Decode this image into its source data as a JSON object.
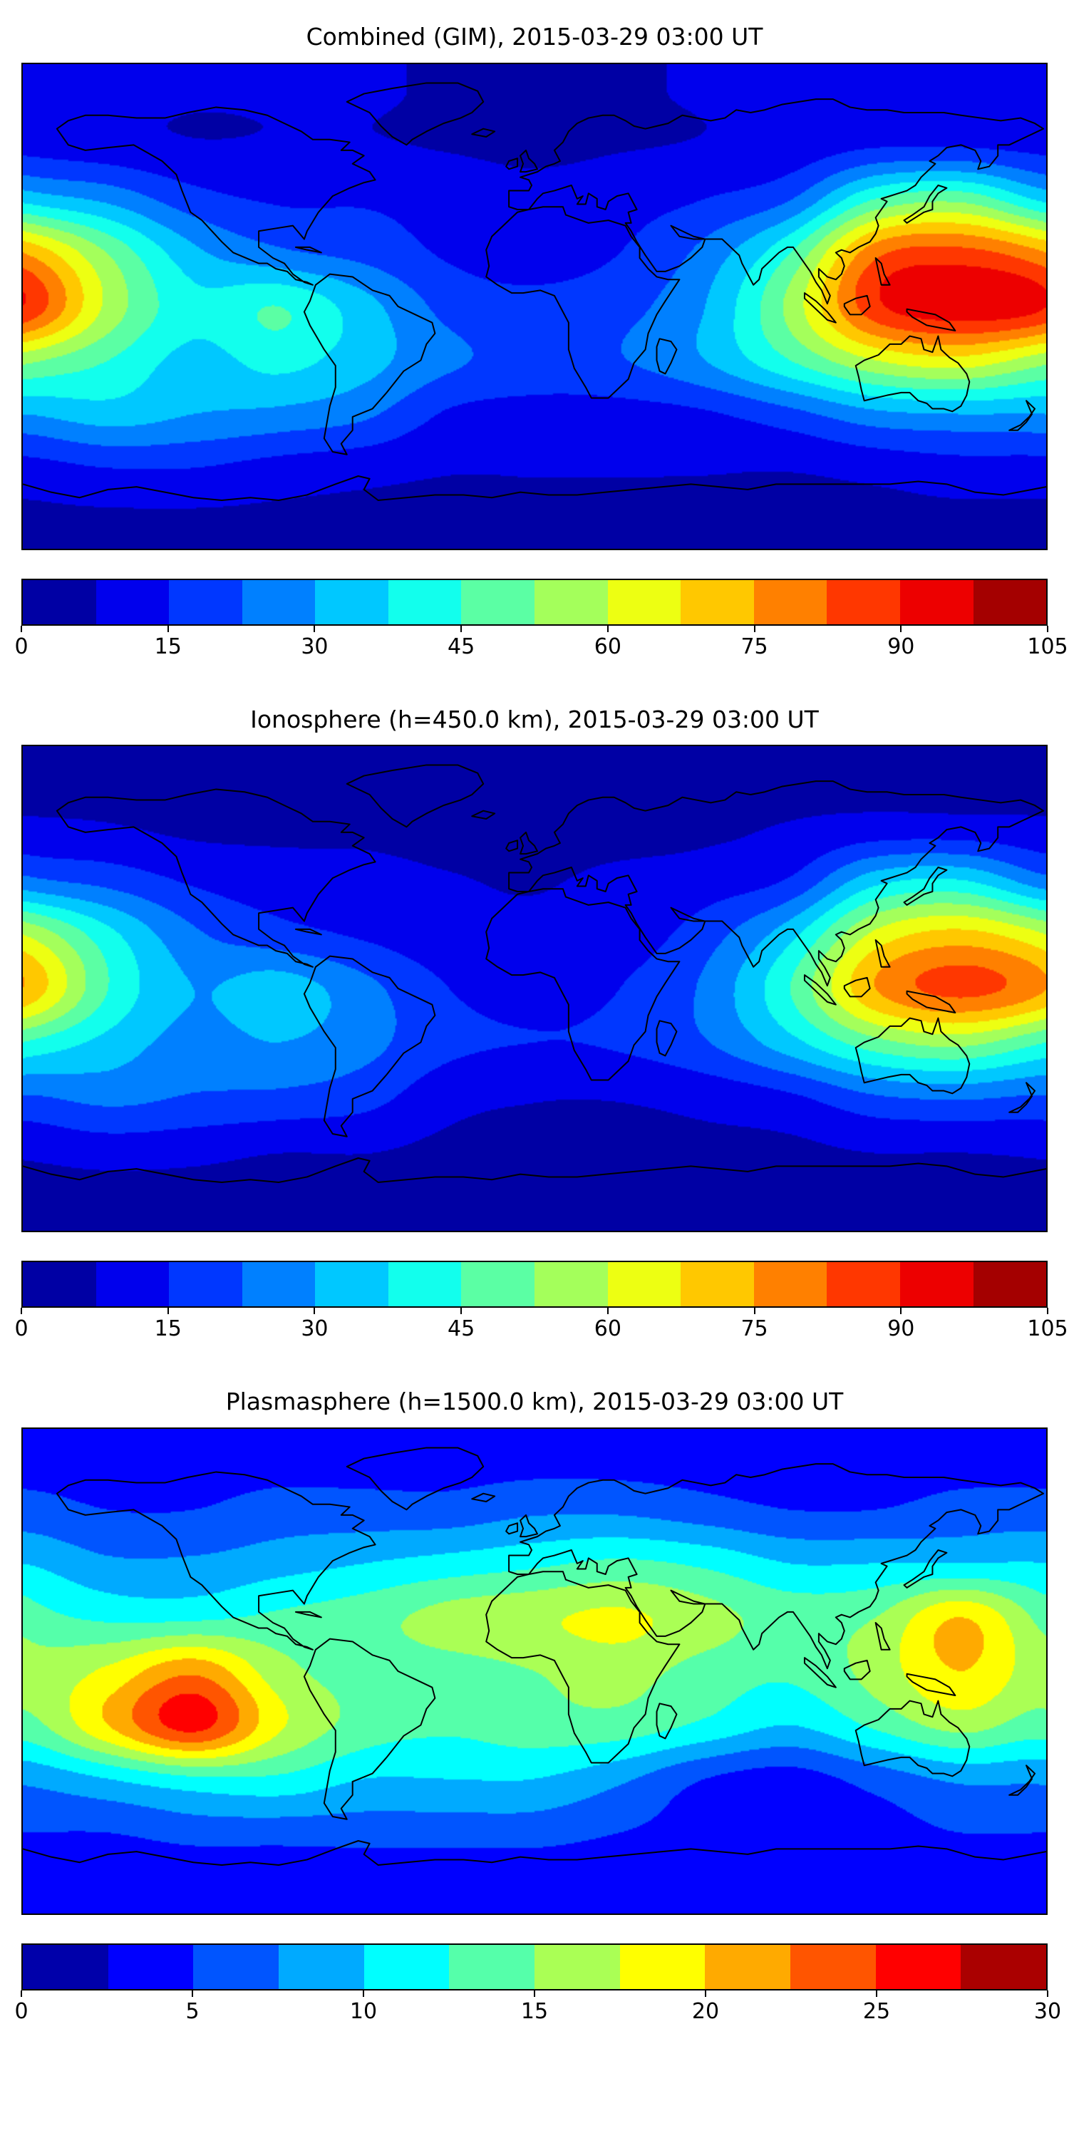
{
  "page": {
    "background": "#ffffff",
    "coastline_color": "#000000",
    "frame_color": "#000000"
  },
  "chart_data": [
    {
      "type": "heatmap",
      "title": "Combined (GIM), 2015-03-29 03:00 UT",
      "projection": "equirectangular",
      "lon_range": [
        -180,
        180
      ],
      "lat_range": [
        -90,
        90
      ],
      "colormap": "jet",
      "levels": {
        "min": 0,
        "max": 105,
        "step": 7.5
      },
      "colorbar_ticks": [
        0,
        15,
        30,
        45,
        60,
        75,
        90,
        105
      ],
      "grid": {
        "lon": [
          -180,
          -150,
          -120,
          -90,
          -60,
          -30,
          0,
          30,
          60,
          90,
          120,
          150
        ],
        "lat": [
          80,
          60,
          40,
          20,
          0,
          -20,
          -40,
          -60,
          -80
        ],
        "values": [
          [
            9,
            9,
            8,
            8,
            8,
            7,
            7,
            7,
            8,
            9,
            10,
            10
          ],
          [
            12,
            10,
            8,
            8,
            8,
            7,
            6,
            7,
            8,
            10,
            14,
            14
          ],
          [
            35,
            28,
            18,
            14,
            14,
            12,
            10,
            12,
            15,
            22,
            45,
            50
          ],
          [
            75,
            52,
            32,
            24,
            20,
            14,
            12,
            15,
            25,
            45,
            80,
            85
          ],
          [
            90,
            58,
            40,
            45,
            33,
            20,
            17,
            20,
            30,
            55,
            88,
            95
          ],
          [
            55,
            45,
            35,
            40,
            33,
            24,
            20,
            22,
            30,
            45,
            60,
            65
          ],
          [
            30,
            34,
            30,
            28,
            24,
            14,
            12,
            12,
            14,
            20,
            28,
            30
          ],
          [
            12,
            15,
            15,
            12,
            10,
            8,
            8,
            8,
            8,
            8,
            10,
            12
          ],
          [
            6,
            6,
            6,
            6,
            6,
            6,
            6,
            6,
            6,
            6,
            6,
            6
          ]
        ]
      }
    },
    {
      "type": "heatmap",
      "title": "Ionosphere  (h=450.0 km), 2015-03-29 03:00 UT",
      "projection": "equirectangular",
      "lon_range": [
        -180,
        180
      ],
      "lat_range": [
        -90,
        90
      ],
      "colormap": "jet",
      "levels": {
        "min": 0,
        "max": 105,
        "step": 7.5
      },
      "colorbar_ticks": [
        0,
        15,
        30,
        45,
        60,
        75,
        90,
        105
      ],
      "grid": {
        "lon": [
          -180,
          -150,
          -120,
          -90,
          -60,
          -30,
          0,
          30,
          60,
          90,
          120,
          150
        ],
        "lat": [
          80,
          60,
          40,
          20,
          0,
          -20,
          -40,
          -60,
          -80
        ],
        "values": [
          [
            6,
            6,
            5,
            5,
            5,
            5,
            4,
            5,
            5,
            6,
            7,
            7
          ],
          [
            9,
            8,
            6,
            6,
            6,
            5,
            5,
            5,
            6,
            8,
            10,
            10
          ],
          [
            25,
            20,
            14,
            11,
            10,
            8,
            7,
            9,
            11,
            16,
            35,
            38
          ],
          [
            60,
            40,
            24,
            18,
            14,
            10,
            9,
            11,
            19,
            35,
            62,
            70
          ],
          [
            75,
            45,
            30,
            34,
            25,
            15,
            12,
            15,
            24,
            45,
            75,
            85
          ],
          [
            45,
            35,
            27,
            30,
            25,
            17,
            15,
            16,
            22,
            35,
            50,
            55
          ],
          [
            22,
            25,
            22,
            21,
            18,
            10,
            8,
            8,
            10,
            14,
            22,
            24
          ],
          [
            9,
            11,
            10,
            8,
            8,
            6,
            6,
            6,
            6,
            6,
            8,
            8
          ],
          [
            4,
            4,
            4,
            4,
            4,
            4,
            4,
            4,
            4,
            4,
            4,
            4
          ]
        ]
      }
    },
    {
      "type": "heatmap",
      "title": "Plasmasphere (h=1500.0 km), 2015-03-29 03:00 UT",
      "projection": "equirectangular",
      "lon_range": [
        -180,
        180
      ],
      "lat_range": [
        -90,
        90
      ],
      "colormap": "jet",
      "levels": {
        "min": 0,
        "max": 30,
        "step": 2.5
      },
      "colorbar_ticks": [
        0,
        5,
        10,
        15,
        20,
        25,
        30
      ],
      "grid": {
        "lon": [
          -180,
          -150,
          -120,
          -90,
          -60,
          -30,
          0,
          30,
          60,
          90,
          120,
          150
        ],
        "lat": [
          80,
          60,
          40,
          20,
          0,
          -20,
          -40,
          -60,
          -80
        ],
        "values": [
          [
            4,
            4,
            4,
            4,
            4,
            4,
            4,
            4,
            4,
            4,
            4,
            4
          ],
          [
            6,
            5,
            5,
            6,
            6,
            6,
            7,
            7,
            6,
            5,
            5,
            6
          ],
          [
            10,
            8,
            8,
            9,
            10,
            11,
            12,
            13,
            12,
            10,
            10,
            10
          ],
          [
            14,
            12,
            12,
            13,
            14,
            16,
            17,
            18,
            16,
            14,
            15,
            20
          ],
          [
            16,
            18,
            22,
            16,
            14,
            14,
            15,
            16,
            14,
            13,
            16,
            20
          ],
          [
            14,
            20,
            26,
            18,
            14,
            13,
            14,
            14,
            12,
            10,
            13,
            16
          ],
          [
            8,
            10,
            12,
            12,
            10,
            10,
            10,
            8,
            5,
            4,
            6,
            8
          ],
          [
            5,
            5,
            6,
            6,
            6,
            6,
            6,
            5,
            4,
            4,
            4,
            5
          ],
          [
            3,
            3,
            3,
            3,
            3,
            3,
            3,
            3,
            3,
            3,
            3,
            3
          ]
        ]
      }
    }
  ]
}
